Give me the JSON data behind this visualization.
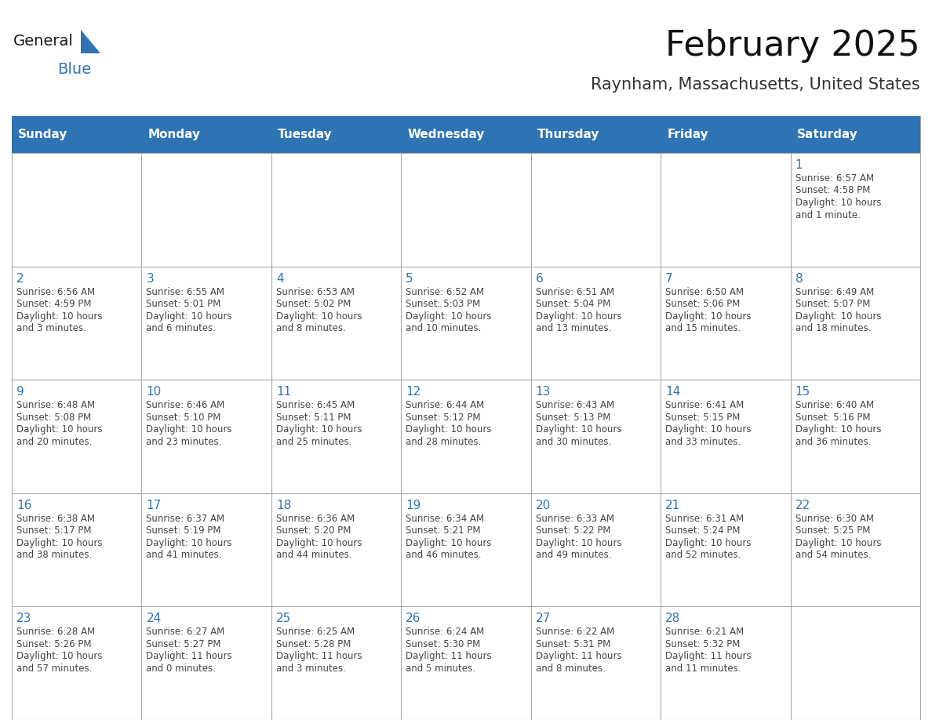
{
  "title": "February 2025",
  "subtitle": "Raynham, Massachusetts, United States",
  "header_bg": "#2E74B5",
  "header_text_color": "#FFFFFF",
  "cell_bg": "#FFFFFF",
  "cell_border": "#AAAAAA",
  "day_num_color": "#2E74B5",
  "body_text_color": "#444444",
  "weekdays": [
    "Sunday",
    "Monday",
    "Tuesday",
    "Wednesday",
    "Thursday",
    "Friday",
    "Saturday"
  ],
  "days": [
    {
      "day": 1,
      "col": 6,
      "row": 0,
      "sunrise": "6:57 AM",
      "sunset": "4:58 PM",
      "daylight": "10 hours and 1 minute."
    },
    {
      "day": 2,
      "col": 0,
      "row": 1,
      "sunrise": "6:56 AM",
      "sunset": "4:59 PM",
      "daylight": "10 hours and 3 minutes."
    },
    {
      "day": 3,
      "col": 1,
      "row": 1,
      "sunrise": "6:55 AM",
      "sunset": "5:01 PM",
      "daylight": "10 hours and 6 minutes."
    },
    {
      "day": 4,
      "col": 2,
      "row": 1,
      "sunrise": "6:53 AM",
      "sunset": "5:02 PM",
      "daylight": "10 hours and 8 minutes."
    },
    {
      "day": 5,
      "col": 3,
      "row": 1,
      "sunrise": "6:52 AM",
      "sunset": "5:03 PM",
      "daylight": "10 hours and 10 minutes."
    },
    {
      "day": 6,
      "col": 4,
      "row": 1,
      "sunrise": "6:51 AM",
      "sunset": "5:04 PM",
      "daylight": "10 hours and 13 minutes."
    },
    {
      "day": 7,
      "col": 5,
      "row": 1,
      "sunrise": "6:50 AM",
      "sunset": "5:06 PM",
      "daylight": "10 hours and 15 minutes."
    },
    {
      "day": 8,
      "col": 6,
      "row": 1,
      "sunrise": "6:49 AM",
      "sunset": "5:07 PM",
      "daylight": "10 hours and 18 minutes."
    },
    {
      "day": 9,
      "col": 0,
      "row": 2,
      "sunrise": "6:48 AM",
      "sunset": "5:08 PM",
      "daylight": "10 hours and 20 minutes."
    },
    {
      "day": 10,
      "col": 1,
      "row": 2,
      "sunrise": "6:46 AM",
      "sunset": "5:10 PM",
      "daylight": "10 hours and 23 minutes."
    },
    {
      "day": 11,
      "col": 2,
      "row": 2,
      "sunrise": "6:45 AM",
      "sunset": "5:11 PM",
      "daylight": "10 hours and 25 minutes."
    },
    {
      "day": 12,
      "col": 3,
      "row": 2,
      "sunrise": "6:44 AM",
      "sunset": "5:12 PM",
      "daylight": "10 hours and 28 minutes."
    },
    {
      "day": 13,
      "col": 4,
      "row": 2,
      "sunrise": "6:43 AM",
      "sunset": "5:13 PM",
      "daylight": "10 hours and 30 minutes."
    },
    {
      "day": 14,
      "col": 5,
      "row": 2,
      "sunrise": "6:41 AM",
      "sunset": "5:15 PM",
      "daylight": "10 hours and 33 minutes."
    },
    {
      "day": 15,
      "col": 6,
      "row": 2,
      "sunrise": "6:40 AM",
      "sunset": "5:16 PM",
      "daylight": "10 hours and 36 minutes."
    },
    {
      "day": 16,
      "col": 0,
      "row": 3,
      "sunrise": "6:38 AM",
      "sunset": "5:17 PM",
      "daylight": "10 hours and 38 minutes."
    },
    {
      "day": 17,
      "col": 1,
      "row": 3,
      "sunrise": "6:37 AM",
      "sunset": "5:19 PM",
      "daylight": "10 hours and 41 minutes."
    },
    {
      "day": 18,
      "col": 2,
      "row": 3,
      "sunrise": "6:36 AM",
      "sunset": "5:20 PM",
      "daylight": "10 hours and 44 minutes."
    },
    {
      "day": 19,
      "col": 3,
      "row": 3,
      "sunrise": "6:34 AM",
      "sunset": "5:21 PM",
      "daylight": "10 hours and 46 minutes."
    },
    {
      "day": 20,
      "col": 4,
      "row": 3,
      "sunrise": "6:33 AM",
      "sunset": "5:22 PM",
      "daylight": "10 hours and 49 minutes."
    },
    {
      "day": 21,
      "col": 5,
      "row": 3,
      "sunrise": "6:31 AM",
      "sunset": "5:24 PM",
      "daylight": "10 hours and 52 minutes."
    },
    {
      "day": 22,
      "col": 6,
      "row": 3,
      "sunrise": "6:30 AM",
      "sunset": "5:25 PM",
      "daylight": "10 hours and 54 minutes."
    },
    {
      "day": 23,
      "col": 0,
      "row": 4,
      "sunrise": "6:28 AM",
      "sunset": "5:26 PM",
      "daylight": "10 hours and 57 minutes."
    },
    {
      "day": 24,
      "col": 1,
      "row": 4,
      "sunrise": "6:27 AM",
      "sunset": "5:27 PM",
      "daylight": "11 hours and 0 minutes."
    },
    {
      "day": 25,
      "col": 2,
      "row": 4,
      "sunrise": "6:25 AM",
      "sunset": "5:28 PM",
      "daylight": "11 hours and 3 minutes."
    },
    {
      "day": 26,
      "col": 3,
      "row": 4,
      "sunrise": "6:24 AM",
      "sunset": "5:30 PM",
      "daylight": "11 hours and 5 minutes."
    },
    {
      "day": 27,
      "col": 4,
      "row": 4,
      "sunrise": "6:22 AM",
      "sunset": "5:31 PM",
      "daylight": "11 hours and 8 minutes."
    },
    {
      "day": 28,
      "col": 5,
      "row": 4,
      "sunrise": "6:21 AM",
      "sunset": "5:32 PM",
      "daylight": "11 hours and 11 minutes."
    }
  ],
  "logo_color_general": "#1a1a1a",
  "logo_color_blue": "#2E74B5",
  "logo_triangle_color": "#2E74B5",
  "title_fontsize": 32,
  "subtitle_fontsize": 15,
  "header_fontsize": 11,
  "day_num_fontsize": 11,
  "body_fontsize": 8.5
}
